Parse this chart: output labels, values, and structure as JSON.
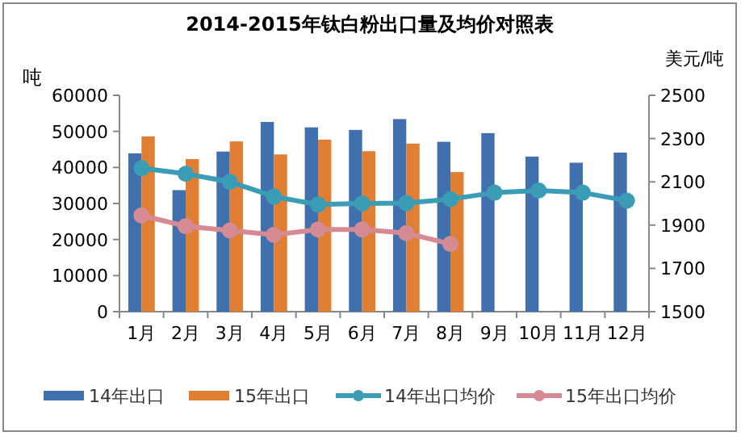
{
  "chart_data": {
    "type": "bar",
    "title": "2014-2015年钛白粉出口量及均价对照表",
    "ylabel": "吨",
    "y2label": "美元/吨",
    "categories": [
      "1月",
      "2月",
      "3月",
      "4月",
      "5月",
      "6月",
      "7月",
      "8月",
      "9月",
      "10月",
      "11月",
      "12月"
    ],
    "series": [
      {
        "name": "14年出口",
        "color": "#4170ae",
        "values": [
          43900,
          33700,
          44400,
          52600,
          51100,
          50400,
          53400,
          47100,
          49500,
          43000,
          41300,
          44100
        ]
      },
      {
        "name": "15年出口",
        "color": "#e07e33",
        "values": [
          48600,
          42300,
          47200,
          43600,
          47700,
          44500,
          46600,
          38700,
          null,
          null,
          null,
          null
        ]
      },
      {
        "name": "14年出口均价",
        "type": "line",
        "axis": "y2",
        "color": "#3a9db5",
        "values": [
          2163,
          2137,
          2100,
          2032,
          1995,
          2000,
          2002,
          2020,
          2050,
          2060,
          2050,
          2013
        ]
      },
      {
        "name": "15年出口均价",
        "type": "line",
        "axis": "y2",
        "color": "#d68a93",
        "values": [
          1945,
          1895,
          1875,
          1855,
          1880,
          1880,
          1863,
          1813,
          null,
          null,
          null,
          null
        ]
      }
    ],
    "ylim": [
      0,
      60000
    ],
    "yticks": [
      0,
      10000,
      20000,
      30000,
      40000,
      50000,
      60000
    ],
    "y2lim": [
      1500,
      2500
    ],
    "y2ticks": [
      1500,
      1700,
      1900,
      2100,
      2300,
      2500
    ],
    "marker": "circle",
    "legend": "bottom",
    "grid": false
  }
}
